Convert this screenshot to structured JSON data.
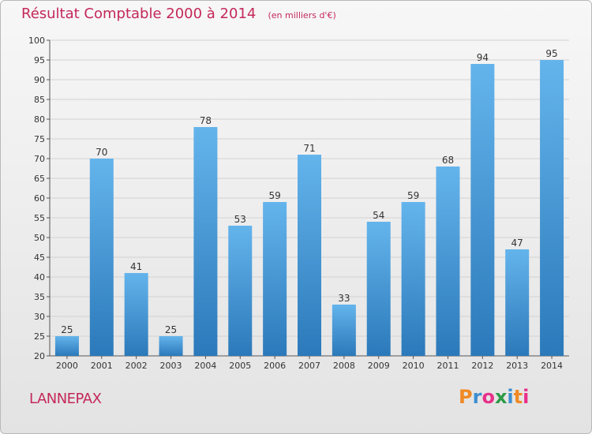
{
  "title": "Résultat Comptable 2000 à 2014",
  "subtitle": "(en milliers d'€)",
  "commune": "LANNEPAX",
  "logo": {
    "letters": [
      "P",
      "r",
      "o",
      "x",
      "i",
      "t",
      "i"
    ],
    "colors": [
      "#f08a24",
      "#3d8fd1",
      "#e8308a",
      "#2d9a47",
      "#3d8fd1",
      "#f08a24",
      "#e8308a"
    ]
  },
  "colors": {
    "bar_top": "#64b4ec",
    "bar_bottom": "#2b79ba",
    "title": "#c4285a",
    "grid": "#d2d2d2"
  },
  "chart_data": {
    "type": "bar",
    "title": "Résultat Comptable 2000 à 2014",
    "ylabel": "(en milliers d'€)",
    "xlabel": "",
    "categories": [
      "2000",
      "2001",
      "2002",
      "2003",
      "2004",
      "2005",
      "2006",
      "2007",
      "2008",
      "2009",
      "2010",
      "2011",
      "2012",
      "2013",
      "2014"
    ],
    "values": [
      25,
      70,
      41,
      25,
      78,
      53,
      59,
      71,
      33,
      54,
      59,
      68,
      94,
      47,
      95
    ],
    "ylim": [
      20,
      100
    ],
    "yticks": [
      20,
      25,
      30,
      35,
      40,
      45,
      50,
      55,
      60,
      65,
      70,
      75,
      80,
      85,
      90,
      95,
      100
    ],
    "grid": true
  }
}
